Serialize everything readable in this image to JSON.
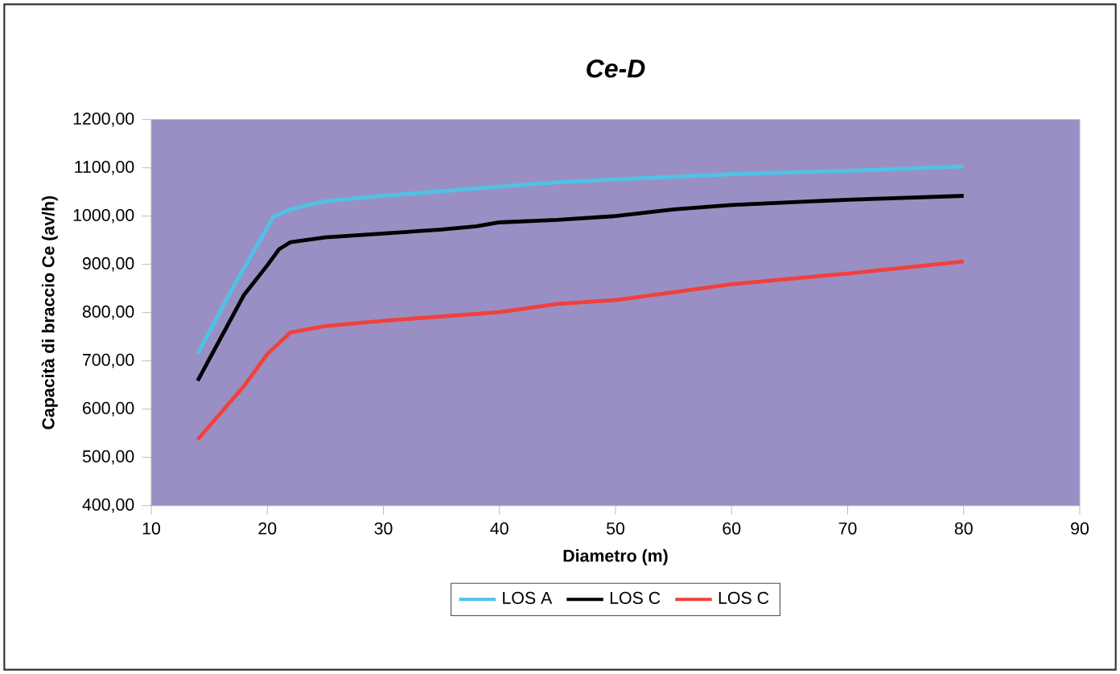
{
  "chart_data": {
    "type": "line",
    "title": "Ce-D",
    "xlabel": "Diametro (m)",
    "ylabel": "Capacità di braccio Ce (av/h)",
    "xlim": [
      10,
      90
    ],
    "xticks": [
      10,
      20,
      30,
      40,
      50,
      60,
      70,
      80,
      90
    ],
    "ylim": [
      400,
      1200
    ],
    "yticks": [
      {
        "value": 400,
        "label": "400,00"
      },
      {
        "value": 500,
        "label": "500,00"
      },
      {
        "value": 600,
        "label": "600,00"
      },
      {
        "value": 700,
        "label": "700,00"
      },
      {
        "value": 800,
        "label": "800,00"
      },
      {
        "value": 900,
        "label": "900,00"
      },
      {
        "value": 1000,
        "label": "1000,00"
      },
      {
        "value": 1100,
        "label": "1100,00"
      },
      {
        "value": 1200,
        "label": "1200,00"
      }
    ],
    "legend": "bottom",
    "grid": false,
    "marker": "none",
    "line_style": "solid",
    "series": [
      {
        "name": "LOS A",
        "color": "#4fc3e6",
        "x": [
          14,
          17,
          20.5,
          22,
          25,
          30,
          40,
          45,
          50,
          60,
          70,
          80
        ],
        "values": [
          715,
          850,
          998,
          1014,
          1031,
          1042,
          1061,
          1070,
          1076,
          1087,
          1094,
          1103
        ]
      },
      {
        "name": "LOS C",
        "color": "#000000",
        "x": [
          14,
          18,
          20,
          21,
          22,
          25,
          30,
          35,
          38,
          40,
          45,
          50,
          55,
          60,
          70,
          80
        ],
        "values": [
          659,
          837,
          898,
          931,
          946,
          956,
          964,
          972,
          979,
          987,
          992,
          1000,
          1014,
          1023,
          1034,
          1042
        ]
      },
      {
        "name": "LOS C",
        "color": "#f0413a",
        "x": [
          14,
          18,
          20,
          22,
          25,
          30,
          35,
          40,
          45,
          50,
          55,
          60,
          70,
          80
        ],
        "values": [
          537,
          648,
          714,
          759,
          772,
          783,
          792,
          801,
          818,
          826,
          842,
          859,
          881,
          906
        ]
      }
    ]
  }
}
